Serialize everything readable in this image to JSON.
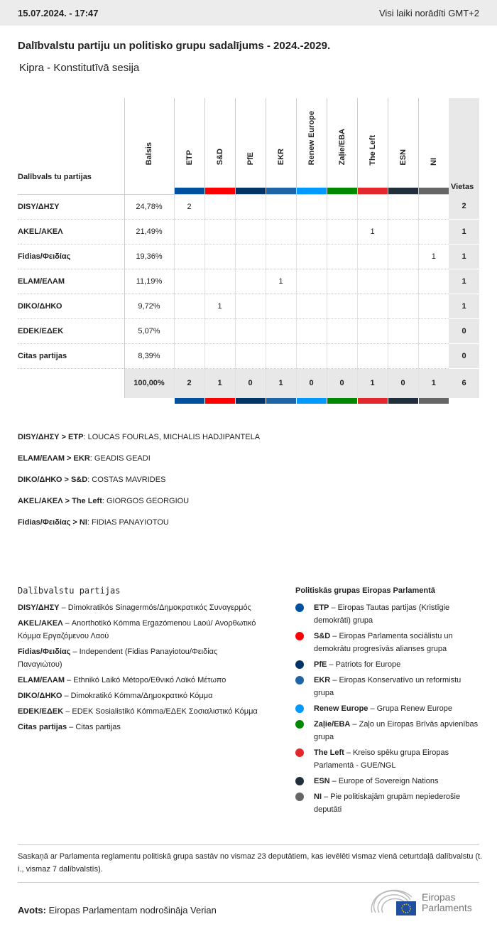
{
  "header": {
    "datetime": "15.07.2024. - 17:47",
    "timezone": "Visi laiki norādīti GMT+2"
  },
  "title": "Dalībvalstu partiju un politisko grupu sadalījums - 2024.-2029.",
  "subtitle": "Kipra - Konstitutīvā sesija",
  "table": {
    "party_header": "Dalībvals tu partijas",
    "votes_header": "Balsis",
    "seats_header": "Vietas",
    "groups": [
      {
        "label": "ETP",
        "color": "#0050a0"
      },
      {
        "label": "S&D",
        "color": "#ff0000"
      },
      {
        "label": "PfE",
        "color": "#003366"
      },
      {
        "label": "EKR",
        "color": "#1d65a6"
      },
      {
        "label": "Renew Europe",
        "color": "#0099ff"
      },
      {
        "label": "Zaļie/EBA",
        "color": "#008800"
      },
      {
        "label": "The Left",
        "color": "#e2282d"
      },
      {
        "label": "ESN",
        "color": "#212f3c"
      },
      {
        "label": "NI",
        "color": "#666666"
      }
    ],
    "rows": [
      {
        "party": "DISY/ΔΗΣΥ",
        "votes": "24,78%",
        "cells": [
          "2",
          "",
          "",
          "",
          "",
          "",
          "",
          "",
          ""
        ],
        "seats": "2"
      },
      {
        "party": "AKEL/ΑΚΕΛ",
        "votes": "21,49%",
        "cells": [
          "",
          "",
          "",
          "",
          "",
          "",
          "1",
          "",
          ""
        ],
        "seats": "1"
      },
      {
        "party": "Fidias/Φειδίας",
        "votes": "19,36%",
        "cells": [
          "",
          "",
          "",
          "",
          "",
          "",
          "",
          "",
          "1"
        ],
        "seats": "1"
      },
      {
        "party": "ELAM/ΕΛΑΜ",
        "votes": "11,19%",
        "cells": [
          "",
          "",
          "",
          "1",
          "",
          "",
          "",
          "",
          ""
        ],
        "seats": "1"
      },
      {
        "party": "DIKO/ΔΗΚΟ",
        "votes": "9,72%",
        "cells": [
          "",
          "1",
          "",
          "",
          "",
          "",
          "",
          "",
          ""
        ],
        "seats": "1"
      },
      {
        "party": "EDEK/ΕΔΕΚ",
        "votes": "5,07%",
        "cells": [
          "",
          "",
          "",
          "",
          "",
          "",
          "",
          "",
          ""
        ],
        "seats": "0"
      },
      {
        "party": "Citas partijas",
        "votes": "8,39%",
        "cells": [
          "",
          "",
          "",
          "",
          "",
          "",
          "",
          "",
          ""
        ],
        "seats": "0"
      }
    ],
    "total": {
      "votes": "100,00%",
      "cells": [
        "2",
        "1",
        "0",
        "1",
        "0",
        "0",
        "1",
        "0",
        "1"
      ],
      "seats": "6"
    }
  },
  "meps": [
    {
      "key": "DISY/ΔΗΣΥ > ETP",
      "names": "LOUCAS FOURLAS, MICHALIS HADJIPANTELA"
    },
    {
      "key": "ELAM/ΕΛΑΜ > EKR",
      "names": "GEADIS GEADI"
    },
    {
      "key": "DIKO/ΔΗΚΟ > S&D",
      "names": "COSTAS MAVRIDES"
    },
    {
      "key": "AKEL/ΑΚΕΛ > The Left",
      "names": "GIORGOS GEORGIOU"
    },
    {
      "key": "Fidias/Φειδίας > NI",
      "names": "FIDIAS PANAYIOTOU"
    }
  ],
  "party_legend": {
    "title": "Dalībvalstu partijas",
    "items": [
      {
        "abbr": "DISY/ΔΗΣΥ",
        "name": "Dimokratikós Sinagermós/Δημοκρατικός Συναγερμός"
      },
      {
        "abbr": "AKEL/ΑΚΕΛ",
        "name": "Anorthotikó Kómma Ergazómenou Laoú/ Ανορθωτικό Κόμμα Εργαζόμενου Λαού"
      },
      {
        "abbr": "Fidias/Φειδίας",
        "name": "Independent (Fidias Panayiotou/Φειδίας Παναγιώτου)"
      },
      {
        "abbr": "ELAM/ΕΛΑΜ",
        "name": "Ethnikó Laikó Métopo/Εθνικό Λαϊκό Μέτωπο"
      },
      {
        "abbr": "DIKO/ΔΗΚΟ",
        "name": "Dimokratikó Kómma/Δημοκρατικό Κόμμα"
      },
      {
        "abbr": "EDEK/ΕΔΕΚ",
        "name": "EDEK Sosialistikó Kómma/ΕΔΕΚ Σοσιαλιστικό Κόμμα"
      },
      {
        "abbr": "Citas partijas",
        "name": "Citas partijas"
      }
    ]
  },
  "group_legend": {
    "title": "Politiskās grupas Eiropas Parlamentā",
    "items": [
      {
        "abbr": "ETP",
        "name": "Eiropas Tautas partijas (Kristīgie demokrāti) grupa",
        "color": "#0050a0"
      },
      {
        "abbr": "S&D",
        "name": "Eiropas Parlamenta sociālistu un demokrātu progresīvās alianses grupa",
        "color": "#ff0000"
      },
      {
        "abbr": "PfE",
        "name": "Patriots for Europe",
        "color": "#003366"
      },
      {
        "abbr": "EKR",
        "name": "Eiropas Konservatīvo un reformistu grupa",
        "color": "#1d65a6"
      },
      {
        "abbr": "Renew Europe",
        "name": "Grupa Renew Europe",
        "color": "#0099ff"
      },
      {
        "abbr": "Zaļie/EBA",
        "name": "Zaļo un Eiropas Brīvās apvienības grupa",
        "color": "#008800"
      },
      {
        "abbr": "The Left",
        "name": "Kreiso spēku grupa Eiropas Parlamentā - GUE/NGL",
        "color": "#e2282d"
      },
      {
        "abbr": "ESN",
        "name": "Europe of Sovereign Nations",
        "color": "#212f3c"
      },
      {
        "abbr": "NI",
        "name": "Pie politiskajām grupām nepiederošie deputāti",
        "color": "#666666"
      }
    ]
  },
  "note": "Saskaņā ar Parlamenta reglamentu politiskā grupa sastāv no vismaz 23 deputātiem, kas ievēlēti vismaz vienā ceturtdaļā dalībvalstu (t. i., vismaz 7 dalībvalstīs).",
  "source": {
    "label": "Avots:",
    "text": "Eiropas Parlamentam nodrošināja Verian"
  },
  "logo": {
    "line1": "Eiropas",
    "line2": "Parlaments"
  }
}
